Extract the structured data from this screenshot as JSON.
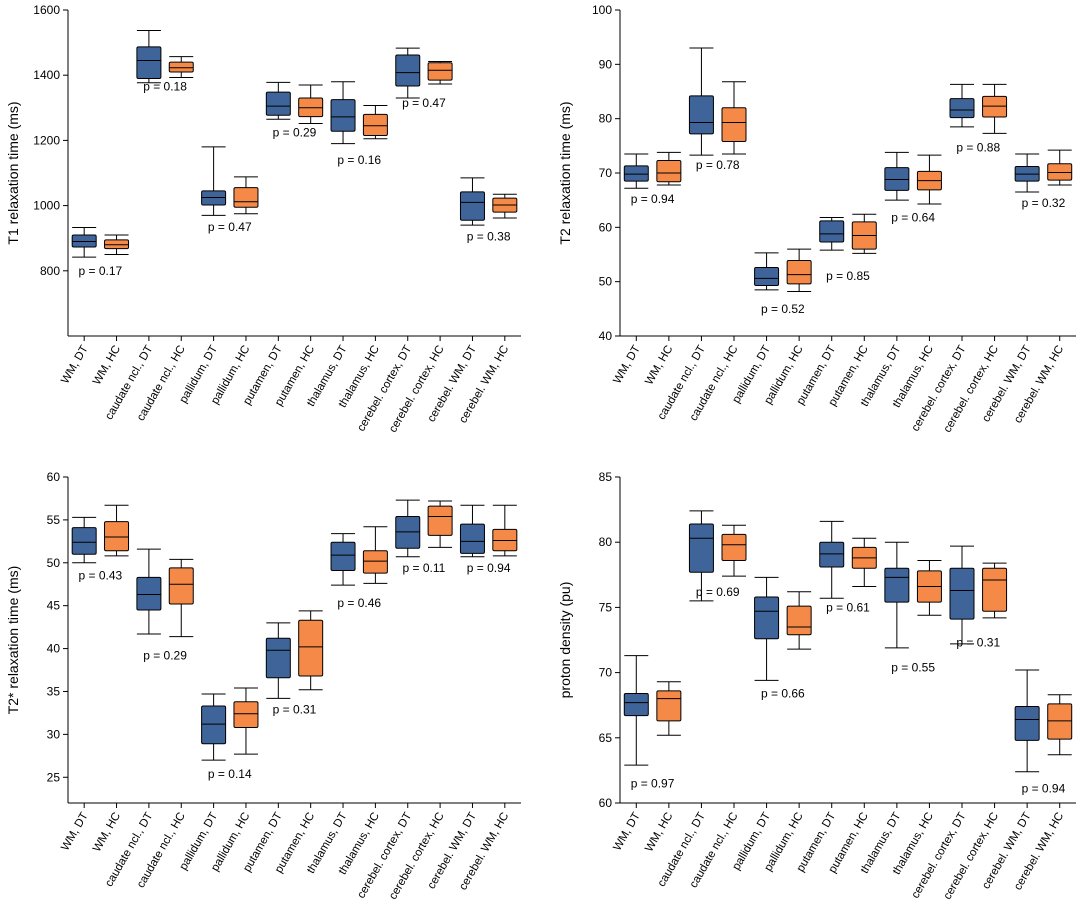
{
  "colors": {
    "dt": "#3f6499",
    "hc": "#f58a48",
    "axis": "#000000"
  },
  "categories": [
    "WM, DT",
    "WM, HC",
    "caudate ncl., DT",
    "caudate ncl., HC",
    "pallidum, DT",
    "pallidum, HC",
    "putamen, DT",
    "putamen, HC",
    "thalamus, DT",
    "thalamus, HC",
    "cerebel. cortex, DT",
    "cerebel. cortex, HC",
    "cerebel. WM, DT",
    "cerebel. WM, HC"
  ],
  "chart_data": [
    {
      "type": "box",
      "title": "",
      "ylabel": "T1 relaxation time (ms)",
      "ylim": [
        600,
        1600
      ],
      "yticks": [
        800,
        1000,
        1200,
        1400,
        1600
      ],
      "boxes": [
        {
          "cat": "WM, DT",
          "min": 842,
          "q1": 873,
          "med": 890,
          "q3": 910,
          "max": 933
        },
        {
          "cat": "WM, HC",
          "min": 850,
          "q1": 868,
          "med": 880,
          "q3": 895,
          "max": 910
        },
        {
          "cat": "caudate ncl., DT",
          "min": 1377,
          "q1": 1390,
          "med": 1445,
          "q3": 1487,
          "max": 1537
        },
        {
          "cat": "caudate ncl., HC",
          "min": 1393,
          "q1": 1410,
          "med": 1423,
          "q3": 1440,
          "max": 1457
        },
        {
          "cat": "pallidum, DT",
          "min": 970,
          "q1": 1002,
          "med": 1025,
          "q3": 1045,
          "max": 1180
        },
        {
          "cat": "pallidum, HC",
          "min": 975,
          "q1": 995,
          "med": 1012,
          "q3": 1055,
          "max": 1088
        },
        {
          "cat": "putamen, DT",
          "min": 1265,
          "q1": 1277,
          "med": 1305,
          "q3": 1348,
          "max": 1378
        },
        {
          "cat": "putamen, HC",
          "min": 1252,
          "q1": 1273,
          "med": 1300,
          "q3": 1330,
          "max": 1370
        },
        {
          "cat": "thalamus, DT",
          "min": 1190,
          "q1": 1228,
          "med": 1272,
          "q3": 1325,
          "max": 1380
        },
        {
          "cat": "thalamus, HC",
          "min": 1205,
          "q1": 1215,
          "med": 1245,
          "q3": 1280,
          "max": 1307
        },
        {
          "cat": "cerebel. cortex, DT",
          "min": 1330,
          "q1": 1367,
          "med": 1408,
          "q3": 1462,
          "max": 1483
        },
        {
          "cat": "cerebel. cortex, HC",
          "min": 1373,
          "q1": 1385,
          "med": 1415,
          "q3": 1438,
          "max": 1442
        },
        {
          "cat": "cerebel. WM, DT",
          "min": 940,
          "q1": 955,
          "med": 1010,
          "q3": 1042,
          "max": 1085
        },
        {
          "cat": "cerebel. WM, HC",
          "min": 962,
          "q1": 980,
          "med": 1002,
          "q3": 1023,
          "max": 1035
        }
      ],
      "pvalues": [
        {
          "pair": 0,
          "label": "p = 0.17",
          "y": 800
        },
        {
          "pair": 1,
          "label": "p = 0.18",
          "y": 1365
        },
        {
          "pair": 2,
          "label": "p = 0.47",
          "y": 935
        },
        {
          "pair": 3,
          "label": "p = 0.29",
          "y": 1225
        },
        {
          "pair": 4,
          "label": "p = 0.16",
          "y": 1140
        },
        {
          "pair": 5,
          "label": "p = 0.47",
          "y": 1315
        },
        {
          "pair": 6,
          "label": "p = 0.38",
          "y": 905
        }
      ]
    },
    {
      "type": "box",
      "title": "",
      "ylabel": "T2 relaxation time (ms)",
      "ylim": [
        40,
        100
      ],
      "yticks": [
        40,
        50,
        60,
        70,
        80,
        90,
        100
      ],
      "boxes": [
        {
          "cat": "WM, DT",
          "min": 67.2,
          "q1": 68.5,
          "med": 69.8,
          "q3": 71.3,
          "max": 73.5
        },
        {
          "cat": "WM, HC",
          "min": 67.8,
          "q1": 68.4,
          "med": 70.0,
          "q3": 72.3,
          "max": 73.8
        },
        {
          "cat": "caudate ncl., DT",
          "min": 73.3,
          "q1": 77.2,
          "med": 79.3,
          "q3": 84.2,
          "max": 93.0
        },
        {
          "cat": "caudate ncl., HC",
          "min": 73.5,
          "q1": 75.8,
          "med": 79.3,
          "q3": 82.0,
          "max": 86.8
        },
        {
          "cat": "pallidum, DT",
          "min": 48.5,
          "q1": 49.3,
          "med": 50.6,
          "q3": 52.6,
          "max": 55.3
        },
        {
          "cat": "pallidum, HC",
          "min": 48.2,
          "q1": 49.6,
          "med": 51.3,
          "q3": 53.9,
          "max": 56.0
        },
        {
          "cat": "putamen, DT",
          "min": 55.8,
          "q1": 57.3,
          "med": 58.8,
          "q3": 61.2,
          "max": 61.8
        },
        {
          "cat": "putamen, HC",
          "min": 55.2,
          "q1": 56.0,
          "med": 58.5,
          "q3": 61.0,
          "max": 62.4
        },
        {
          "cat": "thalamus, DT",
          "min": 65.0,
          "q1": 66.8,
          "med": 68.8,
          "q3": 71.0,
          "max": 73.8
        },
        {
          "cat": "thalamus, HC",
          "min": 64.3,
          "q1": 66.9,
          "med": 68.6,
          "q3": 70.3,
          "max": 73.3
        },
        {
          "cat": "cerebel. cortex, DT",
          "min": 78.5,
          "q1": 80.2,
          "med": 81.6,
          "q3": 83.7,
          "max": 86.3
        },
        {
          "cat": "cerebel. cortex, HC",
          "min": 77.3,
          "q1": 80.3,
          "med": 82.3,
          "q3": 84.1,
          "max": 86.3
        },
        {
          "cat": "cerebel. WM, DT",
          "min": 66.5,
          "q1": 68.5,
          "med": 69.8,
          "q3": 71.2,
          "max": 73.5
        },
        {
          "cat": "cerebel. WM, HC",
          "min": 67.8,
          "q1": 68.7,
          "med": 70.1,
          "q3": 71.7,
          "max": 74.2
        }
      ],
      "pvalues": [
        {
          "pair": 0,
          "label": "p = 0.94",
          "y": 65.2
        },
        {
          "pair": 1,
          "label": "p = 0.78",
          "y": 71.5
        },
        {
          "pair": 2,
          "label": "p = 0.52",
          "y": 45.0
        },
        {
          "pair": 3,
          "label": "p = 0.85",
          "y": 51.0
        },
        {
          "pair": 4,
          "label": "p = 0.64",
          "y": 61.8
        },
        {
          "pair": 5,
          "label": "p = 0.88",
          "y": 74.7
        },
        {
          "pair": 6,
          "label": "p = 0.32",
          "y": 64.5
        }
      ]
    },
    {
      "type": "box",
      "title": "",
      "ylabel": "T2* relaxation time (ms)",
      "ylim": [
        22,
        60
      ],
      "yticks": [
        25,
        30,
        35,
        40,
        45,
        50,
        55,
        60
      ],
      "boxes": [
        {
          "cat": "WM, DT",
          "min": 50.0,
          "q1": 51.0,
          "med": 52.4,
          "q3": 54.1,
          "max": 55.3
        },
        {
          "cat": "WM, HC",
          "min": 50.8,
          "q1": 51.4,
          "med": 53.0,
          "q3": 54.8,
          "max": 56.7
        },
        {
          "cat": "caudate ncl., DT",
          "min": 41.7,
          "q1": 44.5,
          "med": 46.3,
          "q3": 48.3,
          "max": 51.6
        },
        {
          "cat": "caudate ncl., HC",
          "min": 41.4,
          "q1": 45.2,
          "med": 47.5,
          "q3": 49.4,
          "max": 50.4
        },
        {
          "cat": "pallidum, DT",
          "min": 27.0,
          "q1": 28.9,
          "med": 31.2,
          "q3": 33.3,
          "max": 34.7
        },
        {
          "cat": "pallidum, HC",
          "min": 27.7,
          "q1": 30.8,
          "med": 32.4,
          "q3": 33.8,
          "max": 35.4
        },
        {
          "cat": "putamen, DT",
          "min": 34.2,
          "q1": 36.6,
          "med": 39.8,
          "q3": 41.2,
          "max": 43.0
        },
        {
          "cat": "putamen, HC",
          "min": 35.2,
          "q1": 36.8,
          "med": 40.2,
          "q3": 43.3,
          "max": 44.4
        },
        {
          "cat": "thalamus, DT",
          "min": 47.4,
          "q1": 49.1,
          "med": 50.9,
          "q3": 52.4,
          "max": 53.4
        },
        {
          "cat": "thalamus, HC",
          "min": 47.6,
          "q1": 48.8,
          "med": 50.2,
          "q3": 51.4,
          "max": 54.2
        },
        {
          "cat": "cerebel. cortex, DT",
          "min": 50.7,
          "q1": 51.7,
          "med": 53.6,
          "q3": 55.4,
          "max": 57.3
        },
        {
          "cat": "cerebel. cortex, HC",
          "min": 51.8,
          "q1": 53.2,
          "med": 55.4,
          "q3": 56.6,
          "max": 57.2
        },
        {
          "cat": "cerebel. WM, DT",
          "min": 50.7,
          "q1": 51.1,
          "med": 52.5,
          "q3": 54.5,
          "max": 56.7
        },
        {
          "cat": "cerebel. WM, HC",
          "min": 50.8,
          "q1": 51.4,
          "med": 52.6,
          "q3": 53.9,
          "max": 56.7
        }
      ],
      "pvalues": [
        {
          "pair": 0,
          "label": "p = 0.43",
          "y": 48.5
        },
        {
          "pair": 1,
          "label": "p = 0.29",
          "y": 39.2
        },
        {
          "pair": 2,
          "label": "p = 0.14",
          "y": 25.4
        },
        {
          "pair": 3,
          "label": "p = 0.31",
          "y": 32.9
        },
        {
          "pair": 4,
          "label": "p = 0.46",
          "y": 45.3
        },
        {
          "pair": 5,
          "label": "p = 0.11",
          "y": 49.4
        },
        {
          "pair": 6,
          "label": "p = 0.94",
          "y": 49.4
        }
      ]
    },
    {
      "type": "box",
      "title": "",
      "ylabel": "proton density (pu)",
      "ylim": [
        60,
        85
      ],
      "yticks": [
        60,
        65,
        70,
        75,
        80,
        85
      ],
      "boxes": [
        {
          "cat": "WM, DT",
          "min": 62.9,
          "q1": 66.7,
          "med": 67.7,
          "q3": 68.4,
          "max": 71.3
        },
        {
          "cat": "WM, HC",
          "min": 65.2,
          "q1": 66.3,
          "med": 68.0,
          "q3": 68.6,
          "max": 69.3
        },
        {
          "cat": "caudate ncl., DT",
          "min": 75.5,
          "q1": 77.7,
          "med": 80.3,
          "q3": 81.4,
          "max": 82.4
        },
        {
          "cat": "caudate ncl., HC",
          "min": 77.4,
          "q1": 78.6,
          "med": 79.8,
          "q3": 80.6,
          "max": 81.3
        },
        {
          "cat": "pallidum, DT",
          "min": 69.4,
          "q1": 72.6,
          "med": 74.7,
          "q3": 75.8,
          "max": 77.3
        },
        {
          "cat": "pallidum, HC",
          "min": 71.8,
          "q1": 72.9,
          "med": 73.5,
          "q3": 75.1,
          "max": 76.2
        },
        {
          "cat": "putamen, DT",
          "min": 75.7,
          "q1": 78.1,
          "med": 79.1,
          "q3": 80.0,
          "max": 81.6
        },
        {
          "cat": "putamen, HC",
          "min": 76.6,
          "q1": 78.0,
          "med": 78.8,
          "q3": 79.6,
          "max": 80.3
        },
        {
          "cat": "thalamus, DT",
          "min": 71.9,
          "q1": 75.4,
          "med": 77.3,
          "q3": 78.0,
          "max": 80.0
        },
        {
          "cat": "thalamus, HC",
          "min": 74.4,
          "q1": 75.4,
          "med": 76.6,
          "q3": 77.8,
          "max": 78.6
        },
        {
          "cat": "cerebel. cortex, DT",
          "min": 72.2,
          "q1": 74.1,
          "med": 76.3,
          "q3": 78.0,
          "max": 79.7
        },
        {
          "cat": "cerebel. cortex, HC",
          "min": 74.2,
          "q1": 74.7,
          "med": 77.1,
          "q3": 78.0,
          "max": 78.4
        },
        {
          "cat": "cerebel. WM, DT",
          "min": 62.4,
          "q1": 64.8,
          "med": 66.4,
          "q3": 67.4,
          "max": 70.2
        },
        {
          "cat": "cerebel. WM, HC",
          "min": 63.7,
          "q1": 64.9,
          "med": 66.3,
          "q3": 67.6,
          "max": 68.3
        }
      ],
      "pvalues": [
        {
          "pair": 0,
          "label": "p = 0.97",
          "y": 61.5
        },
        {
          "pair": 1,
          "label": "p = 0.69",
          "y": 76.2
        },
        {
          "pair": 2,
          "label": "p = 0.66",
          "y": 68.4
        },
        {
          "pair": 3,
          "label": "p = 0.61",
          "y": 75.0
        },
        {
          "pair": 4,
          "label": "p = 0.55",
          "y": 70.4
        },
        {
          "pair": 5,
          "label": "p = 0.31",
          "y": 72.3
        },
        {
          "pair": 6,
          "label": "p = 0.94",
          "y": 61.1
        }
      ]
    }
  ]
}
